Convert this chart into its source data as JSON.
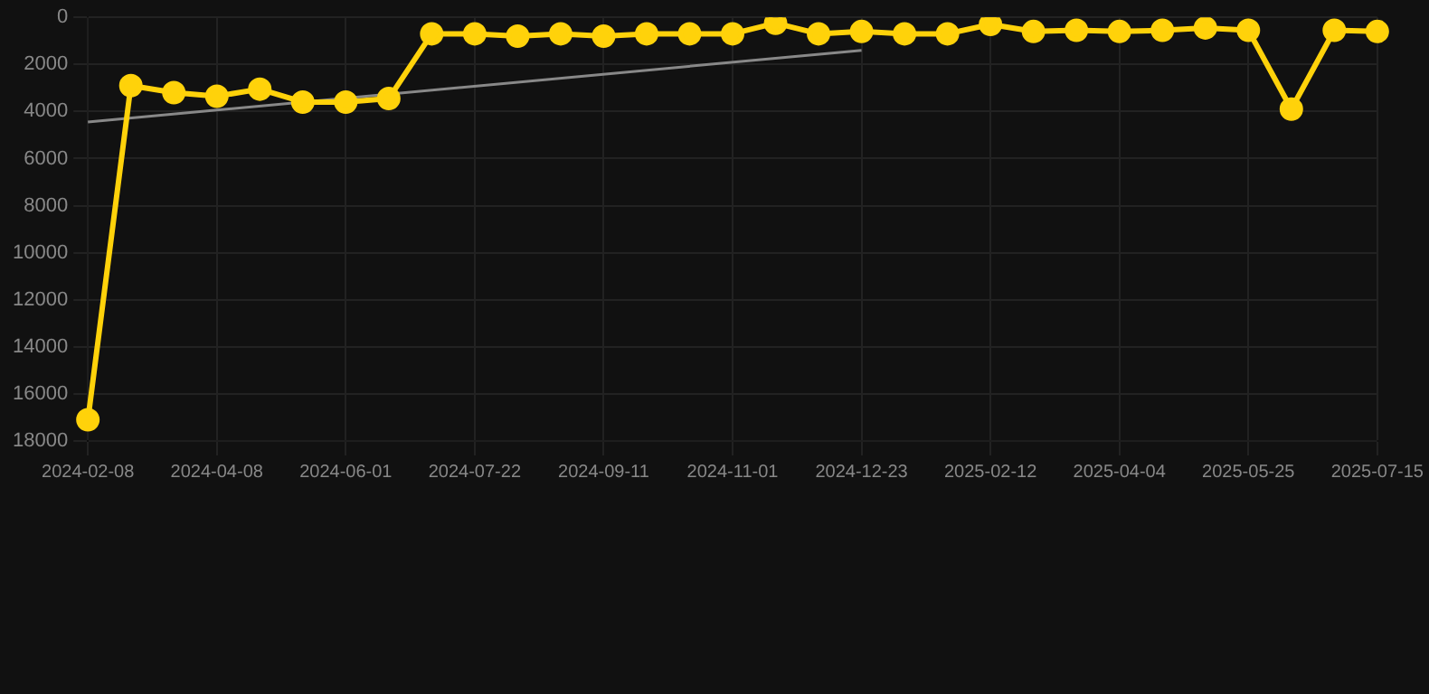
{
  "chart_data": {
    "type": "line",
    "categories": [
      "2024-02-08",
      null,
      null,
      "2024-04-08",
      null,
      null,
      "2024-06-01",
      null,
      null,
      "2024-07-22",
      null,
      null,
      "2024-09-11",
      null,
      null,
      "2024-11-01",
      null,
      null,
      "2024-12-23",
      null,
      null,
      "2025-02-12",
      null,
      null,
      "2025-04-04",
      null,
      null,
      "2025-05-25",
      null,
      null,
      "2025-07-15"
    ],
    "series": [
      {
        "color": "#ffd20a",
        "marker": "circle",
        "values": [
          17100,
          2900,
          3200,
          3350,
          3050,
          3600,
          3600,
          3450,
          700,
          700,
          800,
          700,
          800,
          700,
          700,
          700,
          250,
          700,
          600,
          700,
          700,
          300,
          600,
          550,
          600,
          550,
          450,
          550,
          3900,
          550,
          600
        ]
      },
      {
        "color": "#888888",
        "marker": "none",
        "values": [
          4450,
          null,
          null,
          null,
          null,
          null,
          null,
          null,
          null,
          null,
          null,
          null,
          null,
          null,
          null,
          null,
          null,
          null,
          1400,
          null,
          null,
          null,
          null,
          null,
          null,
          null,
          null,
          null,
          null,
          null,
          null
        ]
      }
    ],
    "ylim": [
      18000,
      0
    ],
    "yticks": [
      0,
      2000,
      4000,
      6000,
      8000,
      10000,
      12000,
      14000,
      16000,
      18000
    ],
    "grid": true,
    "legend": false
  }
}
